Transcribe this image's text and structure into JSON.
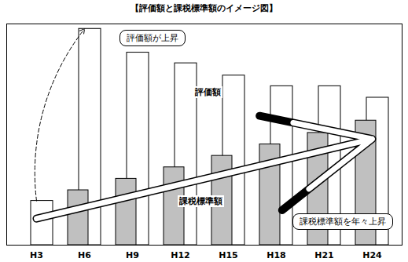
{
  "chart_data": {
    "type": "bar",
    "title": "【評価額と課税標準額のイメージ図】",
    "categories": [
      "H3",
      "H6",
      "H9",
      "H12",
      "H15",
      "H18",
      "H21",
      "H24"
    ],
    "series": [
      {
        "name": "評価額",
        "color": "#ffffff",
        "values": [
          54,
          264,
          235,
          222,
          207,
          194,
          194,
          180
        ]
      },
      {
        "name": "課税標準額",
        "color": "#c0c0c0",
        "values": [
          null,
          67,
          81,
          95,
          109,
          123,
          137,
          152
        ]
      }
    ],
    "ylim": [
      0,
      270
    ],
    "tick_labels": "x",
    "annotations": [
      "評価額が上昇",
      "課税標準額を年々上昇"
    ]
  }
}
